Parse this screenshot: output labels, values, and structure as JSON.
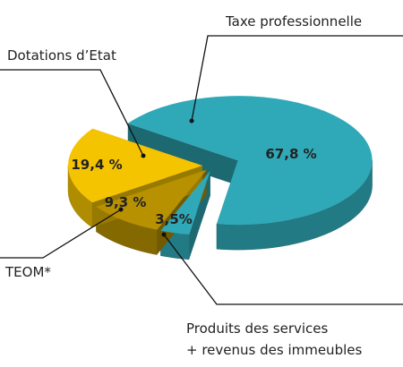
{
  "chart_data": {
    "type": "pie",
    "categories": [
      "Taxe professionnelle",
      "Produits des services\n+ revenus des immeubles",
      "TEOM*",
      "Dotations d’Etat"
    ],
    "values": [
      67.8,
      3.5,
      9.3,
      19.4
    ],
    "value_labels": [
      "67,8 %",
      "3,5%",
      "9,3 %",
      "19,4 %"
    ],
    "colors": [
      "#2fa9b8",
      "#2fa9b8",
      "#b89100",
      "#f5c400"
    ]
  }
}
